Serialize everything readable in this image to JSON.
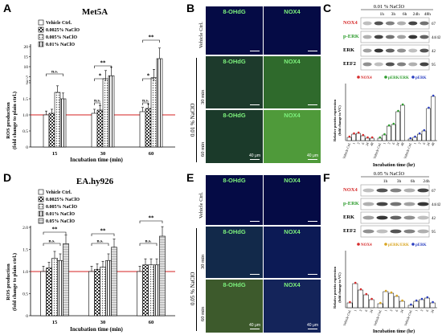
{
  "panels": {
    "A": "A",
    "B": "B",
    "C": "C",
    "D": "D",
    "E": "E",
    "F": "F"
  },
  "panelA": {
    "title": "Met5A",
    "legend": [
      "Vehicle Ctrl.",
      "0.0025% NaClO",
      "0.005% NaClO",
      "0.01% NaClO"
    ],
    "ylabel": [
      "ROS production",
      "(fold change to plain ctrl.)"
    ],
    "xlabel": "Incubation time (min)",
    "xticks": [
      "15",
      "30",
      "60"
    ],
    "yticks": [
      "0",
      "0.5",
      "1.0",
      "1.5",
      "2",
      "3",
      "5",
      "10",
      "15",
      "20"
    ],
    "annotations": {
      "ns": "n.s.",
      "star": "*",
      "dstar": "**"
    }
  },
  "panelD": {
    "title": "EA.hy926",
    "legend": [
      "Vehicle Ctrl.",
      "0.0025% NaClO",
      "0.005% NaClO",
      "0.01% NaClO",
      "0.05% NaClO"
    ],
    "ylabel": [
      "ROS production",
      "(fold change to plain ctrl.)"
    ],
    "xlabel": "Incubation time (min)",
    "xticks": [
      "15",
      "30",
      "60"
    ],
    "yticks": [
      "0",
      "0.5",
      "1.0",
      "1.5",
      "2.0"
    ],
    "annotations": {
      "ns": "n.s.",
      "dstar": "**"
    }
  },
  "chart_data": [
    {
      "type": "bar",
      "title": "Met5A",
      "categories": [
        "15",
        "30",
        "60"
      ],
      "xlabel": "Incubation time (min)",
      "ylabel": "ROS production (fold change to plain ctrl.)",
      "series": [
        {
          "name": "Vehicle Ctrl.",
          "values": [
            1.0,
            1.05,
            1.1
          ]
        },
        {
          "name": "0.0025% NaClO",
          "values": [
            1.05,
            1.15,
            1.2
          ]
        },
        {
          "name": "0.005% NaClO",
          "values": [
            1.7,
            4.0,
            4.5
          ]
        },
        {
          "name": "0.01% NaClO",
          "values": [
            1.5,
            5.5,
            14.0
          ]
        }
      ]
    },
    {
      "type": "bar",
      "title": "EA.hy926",
      "categories": [
        "15",
        "30",
        "60"
      ],
      "xlabel": "Incubation time (min)",
      "ylabel": "ROS production (fold change to plain ctrl.)",
      "ylim": [
        0,
        2.0
      ],
      "series": [
        {
          "name": "Vehicle Ctrl.",
          "values": [
            1.0,
            1.0,
            1.0
          ]
        },
        {
          "name": "0.0025% NaClO",
          "values": [
            1.08,
            1.05,
            1.15
          ]
        },
        {
          "name": "0.005% NaClO",
          "values": [
            1.3,
            1.1,
            1.15
          ]
        },
        {
          "name": "0.01% NaClO",
          "values": [
            1.25,
            1.25,
            1.15
          ]
        },
        {
          "name": "0.05% NaClO",
          "values": [
            1.63,
            1.55,
            1.8
          ]
        }
      ]
    }
  ],
  "panelB": {
    "labels": [
      "8-OHdG",
      "NOX4"
    ],
    "rows": [
      "Vehicle Ctrl.",
      "30 min",
      "60 min"
    ],
    "group": "0.01 % NaClO",
    "scale": "40 μm"
  },
  "panelE": {
    "labels": [
      "8-OHdG",
      "NOX4"
    ],
    "rows": [
      "Vehicle Ctrl.",
      "30 min",
      "60 min"
    ],
    "group": "0.05 % NaClO",
    "scale": "40 μm"
  },
  "panelC": {
    "header": "0.01 % NaClO",
    "times": [
      "1h",
      "3h",
      "6h",
      "24h",
      "48h"
    ],
    "bands": [
      {
        "name": "NOX4",
        "kda": "67",
        "color": "#d62b2b"
      },
      {
        "name": "p-ERK",
        "kda": "44/42",
        "color": "#2e9c2e"
      },
      {
        "name": "ERK",
        "kda": "42",
        "color": "#000000"
      },
      {
        "name": "EEF2",
        "kda": "95",
        "color": "#000000"
      }
    ],
    "legend": [
      "NOX4",
      "pERK/ERK",
      "pERK"
    ],
    "ylabel": [
      "Relative protein expression",
      "(fold change to VC)"
    ],
    "xlabel": "Incubation time (hr)",
    "xticks": [
      "Vehicle Ctrl.",
      "1",
      "3",
      "6",
      "24",
      "48"
    ],
    "colors": {
      "nox4": "#d62b2b",
      "perk_erk": "#2e9c2e",
      "perk": "#2b3fc0"
    }
  },
  "panelF": {
    "header": "0.05 % NaClO",
    "times": [
      "1h",
      "3h",
      "6h",
      "24h"
    ],
    "bands": [
      {
        "name": "NOX4",
        "kda": "67",
        "color": "#d62b2b"
      },
      {
        "name": "p-ERK",
        "kda": "44/42",
        "color": "#2e9c2e"
      },
      {
        "name": "ERK",
        "kda": "42",
        "color": "#000000"
      },
      {
        "name": "EEF2",
        "kda": "95",
        "color": "#000000"
      }
    ],
    "legend": [
      "NOX4",
      "pERK/ERK",
      "pERK"
    ],
    "ylabel": [
      "Relative protein expression",
      "(fold change to VC)"
    ],
    "xlabel": "Incubation time (hr)",
    "xticks": [
      "Vehicle Ctrl.",
      "1",
      "3",
      "6",
      "24"
    ],
    "colors": {
      "nox4": "#d62b2b",
      "perk_erk": "#d9a521",
      "perk": "#2b3fc0"
    }
  }
}
